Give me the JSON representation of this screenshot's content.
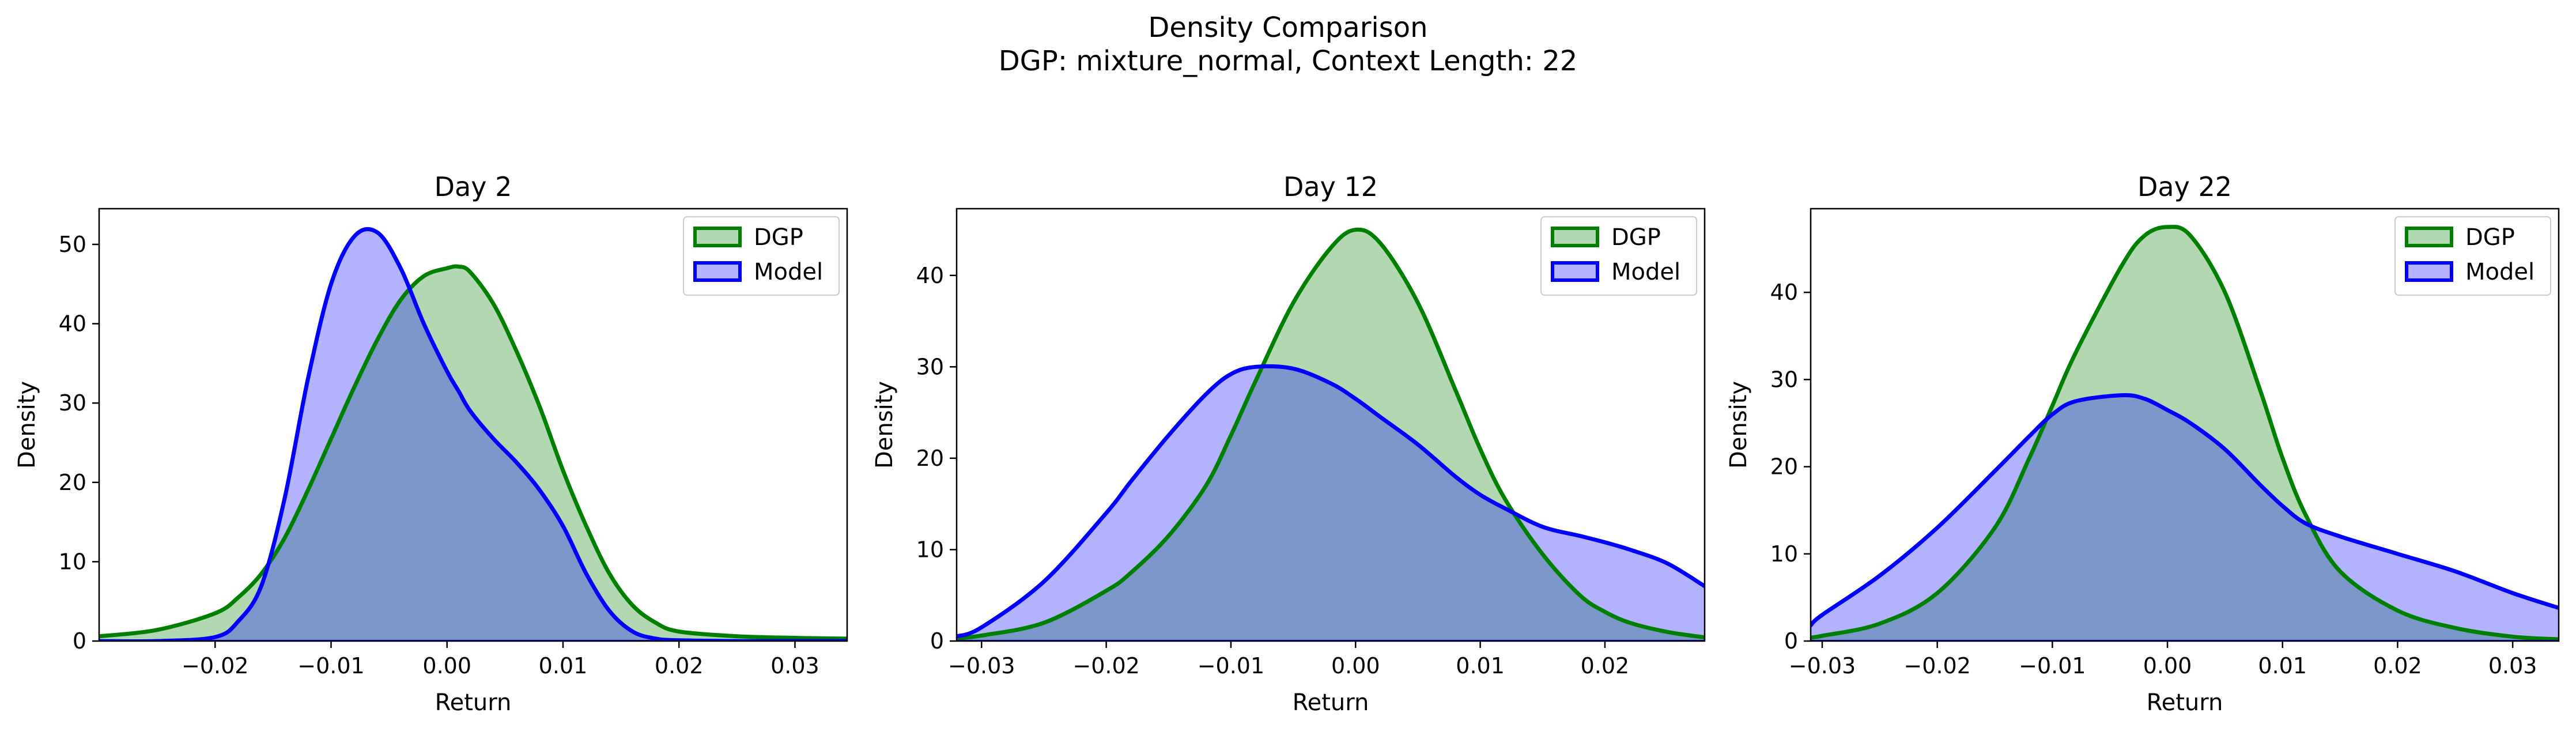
{
  "figure": {
    "title_line1": "Density Comparison",
    "title_line2": "DGP: mixture_normal, Context Length: 22"
  },
  "colors": {
    "dgp_line": "#008000",
    "dgp_fill": "#b2d8b2",
    "model_line": "#0000ff",
    "model_fill": "#b2b2ff",
    "overlap_fill": "#7f98c8"
  },
  "chart_data": [
    {
      "type": "area",
      "title": "Day 2",
      "xlabel": "Return",
      "ylabel": "Density",
      "xlim": [
        -0.03,
        0.0345
      ],
      "ylim": [
        0,
        54.5
      ],
      "xticks": [
        -0.02,
        -0.01,
        0.0,
        0.01,
        0.02,
        0.03
      ],
      "xtick_labels": [
        "−0.02",
        "−0.01",
        "0.00",
        "0.01",
        "0.02",
        "0.03"
      ],
      "yticks": [
        0,
        10,
        20,
        30,
        40,
        50
      ],
      "ytick_labels": [
        "0",
        "10",
        "20",
        "30",
        "40",
        "50"
      ],
      "legend": "top-right",
      "x": [
        -0.03,
        -0.025,
        -0.02,
        -0.018,
        -0.016,
        -0.014,
        -0.012,
        -0.01,
        -0.008,
        -0.006,
        -0.004,
        -0.002,
        0.0,
        0.001,
        0.002,
        0.004,
        0.006,
        0.008,
        0.01,
        0.012,
        0.014,
        0.016,
        0.018,
        0.02,
        0.025,
        0.03,
        0.0345
      ],
      "series": [
        {
          "name": "DGP",
          "values": [
            0.6,
            1.4,
            3.5,
            5.5,
            8.5,
            13,
            19,
            25.5,
            32,
            38,
            43,
            46,
            47,
            47.2,
            46.5,
            42.5,
            36.5,
            29.5,
            21.5,
            14.5,
            8.5,
            4.5,
            2.3,
            1.2,
            0.6,
            0.4,
            0.3
          ]
        },
        {
          "name": "Model",
          "values": [
            0.0,
            0.0,
            0.5,
            2.5,
            7,
            18,
            33,
            45,
            51,
            51.5,
            47,
            40,
            34,
            31.5,
            29,
            25.5,
            22.5,
            19,
            14.5,
            8.5,
            3.8,
            1.2,
            0.3,
            0.1,
            0.0,
            0.0,
            0.0
          ]
        }
      ]
    },
    {
      "type": "area",
      "title": "Day 12",
      "xlabel": "Return",
      "ylabel": "Density",
      "xlim": [
        -0.032,
        0.028
      ],
      "ylim": [
        0,
        47.3
      ],
      "xticks": [
        -0.03,
        -0.02,
        -0.01,
        0.0,
        0.01,
        0.02
      ],
      "xtick_labels": [
        "−0.03",
        "−0.02",
        "−0.01",
        "0.00",
        "0.01",
        "0.02"
      ],
      "yticks": [
        0,
        10,
        20,
        30,
        40
      ],
      "ytick_labels": [
        "0",
        "10",
        "20",
        "30",
        "40"
      ],
      "legend": "top-right",
      "x": [
        -0.032,
        -0.03,
        -0.025,
        -0.02,
        -0.018,
        -0.015,
        -0.012,
        -0.01,
        -0.008,
        -0.005,
        -0.002,
        0.0,
        0.002,
        0.005,
        0.008,
        0.01,
        0.012,
        0.015,
        0.018,
        0.02,
        0.022,
        0.025,
        0.028
      ],
      "series": [
        {
          "name": "DGP",
          "values": [
            0.3,
            0.6,
            2.0,
            5.5,
            7.5,
            11.5,
            17,
            22.5,
            28.5,
            37,
            43,
            45,
            43.5,
            37,
            27.5,
            21,
            15.5,
            9.5,
            5.0,
            3.2,
            2.0,
            1.0,
            0.4
          ]
        },
        {
          "name": "Model",
          "values": [
            0.5,
            1.5,
            6.5,
            14,
            17.5,
            22.5,
            27,
            29.2,
            30,
            29.8,
            28.2,
            26.5,
            24.5,
            21.5,
            18,
            16,
            14.5,
            12.5,
            11.5,
            10.8,
            10,
            8.5,
            6
          ]
        }
      ]
    },
    {
      "type": "area",
      "title": "Day 22",
      "xlabel": "Return",
      "ylabel": "Density",
      "xlim": [
        -0.031,
        0.034
      ],
      "ylim": [
        0,
        49.6
      ],
      "xticks": [
        -0.03,
        -0.02,
        -0.01,
        0.0,
        0.01,
        0.02,
        0.03
      ],
      "xtick_labels": [
        "−0.03",
        "−0.02",
        "−0.01",
        "0.00",
        "0.01",
        "0.02",
        "0.03"
      ],
      "yticks": [
        0,
        10,
        20,
        30,
        40
      ],
      "ytick_labels": [
        "0",
        "10",
        "20",
        "30",
        "40"
      ],
      "legend": "top-right",
      "x": [
        -0.031,
        -0.03,
        -0.025,
        -0.02,
        -0.015,
        -0.012,
        -0.01,
        -0.008,
        -0.004,
        -0.002,
        0.0,
        0.002,
        0.005,
        0.008,
        0.01,
        0.012,
        0.015,
        0.02,
        0.025,
        0.03,
        0.034
      ],
      "series": [
        {
          "name": "DGP",
          "values": [
            0.4,
            0.6,
            2.0,
            5.5,
            13,
            21,
            27,
            33,
            43,
            46.5,
            47.5,
            46.5,
            40,
            29,
            21,
            14.5,
            8,
            3.5,
            1.5,
            0.5,
            0.2
          ]
        },
        {
          "name": "Model",
          "values": [
            1.8,
            3,
            7.5,
            13,
            19.5,
            23.5,
            26,
            27.5,
            28.2,
            27.8,
            26.5,
            25,
            22,
            18,
            15.5,
            13.5,
            12,
            10,
            8,
            5.5,
            3.8
          ]
        }
      ]
    }
  ]
}
